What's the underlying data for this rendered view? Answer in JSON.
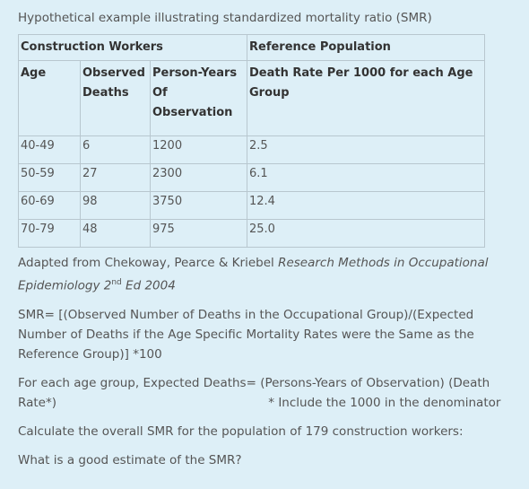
{
  "title": "Hypothetical example illustrating standardized mortality ratio (SMR)",
  "table": {
    "group_headers": [
      "Construction Workers",
      "Reference Population"
    ],
    "headers": [
      "Age",
      "Observed Deaths",
      "Person-Years Of Observation",
      "Death Rate Per 1000 for each Age Group"
    ],
    "rows": [
      [
        "40-49",
        "6",
        "1200",
        "2.5"
      ],
      [
        "50-59",
        "27",
        "2300",
        "6.1"
      ],
      [
        "60-69",
        "98",
        "3750",
        "12.4"
      ],
      [
        "70-79",
        "48",
        "975",
        "25.0"
      ]
    ]
  },
  "caption": {
    "text": "Adapted from Chekoway, Pearce & Kriebel ",
    "italic": "Research Methods in Occupational Epidemiology 2",
    "superscript": "nd",
    "italic_end": " Ed 2004"
  },
  "paragraphs": [
    "SMR= [(Observed Number of Deaths in the Occupational Group)/(Expected Number of Deaths if the Age Specific Mortality Rates were the Same as the Reference Group)] *100",
    "For each age group, Expected Deaths= (Persons-Years of Observation) (Death Rate*)",
    "Calculate the overall SMR for the population of 179 construction workers:",
    "What is a good estimate of the SMR?"
  ],
  "note": "* Include the 1000 in the denominator"
}
